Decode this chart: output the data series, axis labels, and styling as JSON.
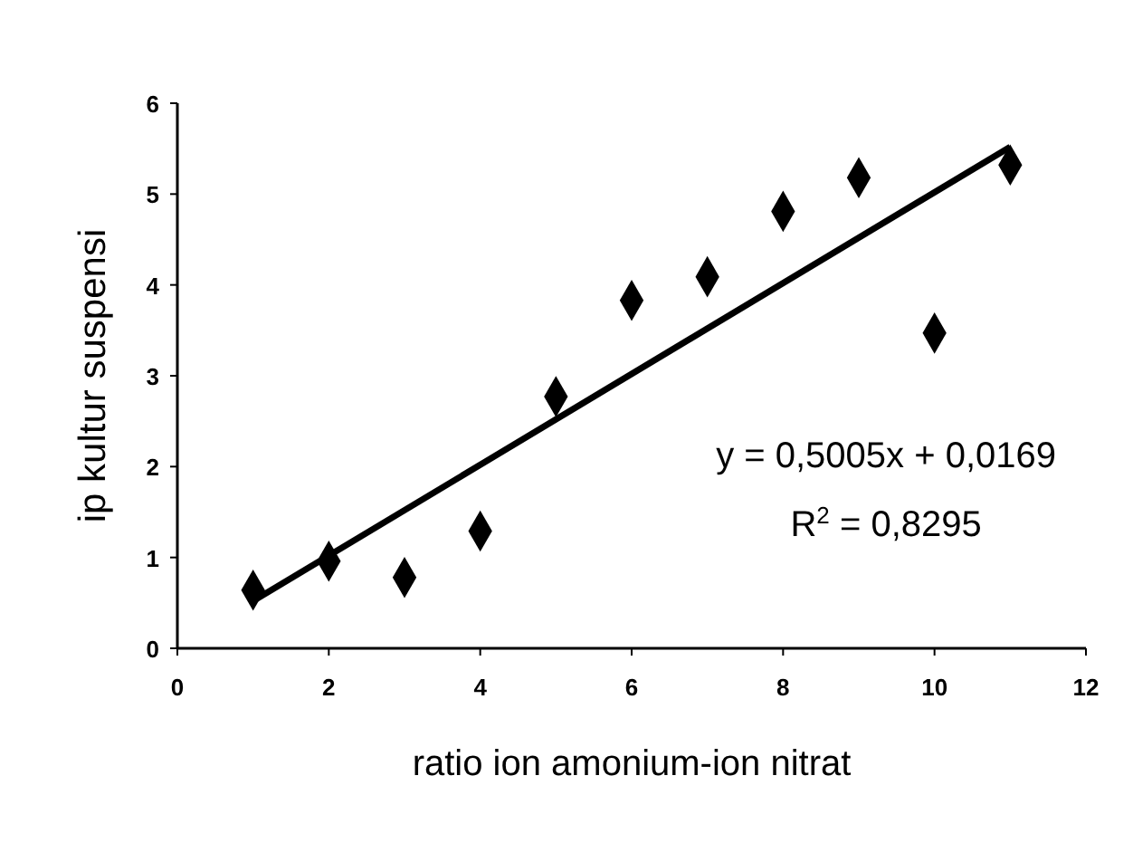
{
  "chart_data": {
    "type": "scatter",
    "xlabel": "ratio ion amonium-ion nitrat",
    "ylabel": "ip kultur suspensi",
    "xlim": [
      0,
      12
    ],
    "xticks": [
      0,
      2,
      4,
      6,
      8,
      10,
      12
    ],
    "ylim": [
      0,
      6
    ],
    "yticks": [
      0,
      1,
      2,
      3,
      4,
      5,
      6
    ],
    "grid": false,
    "series": [
      {
        "color": "#000000",
        "marker": "diamond",
        "x": [
          1,
          2,
          3,
          4,
          5,
          6,
          7,
          8,
          9,
          10,
          11
        ],
        "values": [
          0.64,
          0.96,
          0.78,
          1.29,
          2.77,
          3.83,
          4.09,
          4.81,
          5.18,
          3.47,
          5.32
        ]
      },
      {
        "type": "line",
        "color": "#000000",
        "marker": "none",
        "x": [
          1,
          11
        ],
        "values": [
          0.52,
          5.52
        ]
      }
    ],
    "annotations": [
      "y = 0,5005x + 0,0169",
      "R$^{2}$ = 0,8295"
    ]
  }
}
